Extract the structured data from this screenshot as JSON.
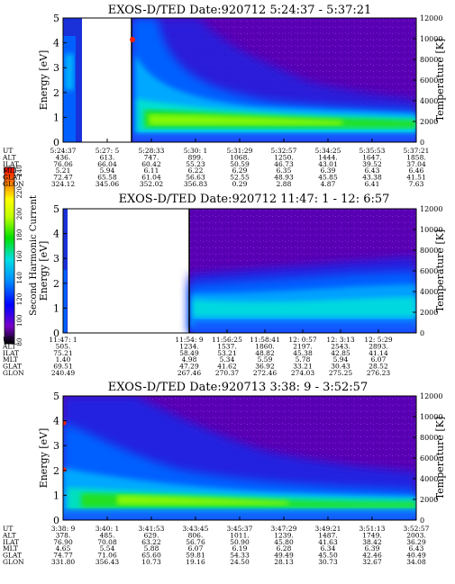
{
  "colors": {
    "background": "#5a00b4",
    "colorbar": [
      "#000000",
      "#7800c8",
      "#0000ff",
      "#0090ff",
      "#00e0e0",
      "#00e000",
      "#c0ff00",
      "#ffff00",
      "#ff8000",
      "#ff0000"
    ]
  },
  "colorbar": {
    "label": "Second Harmonic Current",
    "ticks": [
      "80",
      "100",
      "120",
      "140",
      "160",
      "180",
      "200",
      "220",
      "240"
    ]
  },
  "chart_data": [
    {
      "type": "heatmap",
      "title": "EXOS-D/TED   Date:920712  5:24:37 - 5:37:21",
      "ylabel": "Energy [eV]",
      "y2label": "Temperature [K]",
      "ylim": [
        0,
        5
      ],
      "y2lim": [
        0,
        12000
      ],
      "yticks": [
        "0",
        "1",
        "2",
        "3",
        "4",
        "5"
      ],
      "y2ticks": [
        "0",
        "2000",
        "4000",
        "6000",
        "8000",
        "10000",
        "12000"
      ],
      "row_labels": [
        "UT",
        "ALT",
        "ILAT",
        "MLT",
        "GLAT",
        "GLON"
      ],
      "columns": [
        [
          "5:24:37",
          "436.",
          "76.06",
          "5.21",
          "72.47",
          "324.12"
        ],
        [
          "5:27: 5",
          "613.",
          "66.04",
          "5.94",
          "65.58",
          "345.06"
        ],
        [
          "5:28:33",
          "747.",
          "60.42",
          "6.11",
          "61.04",
          "352.02"
        ],
        [
          "5:30: 1",
          "899.",
          "55.23",
          "6.22",
          "56.63",
          "356.83"
        ],
        [
          "5:31:29",
          "1068.",
          "50.59",
          "6.29",
          "52.55",
          "0.29"
        ],
        [
          "5:32:57",
          "1250.",
          "46.73",
          "6.35",
          "48.93",
          "2.88"
        ],
        [
          "5:34:25",
          "1444.",
          "43.01",
          "6.39",
          "45.85",
          "4.87"
        ],
        [
          "5:35:53",
          "1647.",
          "39.52",
          "6.43",
          "43.38",
          "6.41"
        ],
        [
          "5:37:21",
          "1858.",
          "37.04",
          "6.46",
          "41.51",
          "7.63"
        ]
      ]
    },
    {
      "type": "heatmap",
      "title": "EXOS-D/TED   Date:920712  11:47: 1 - 12: 6:57",
      "ylabel": "Energy [eV]",
      "y2label": "Temperature [K]",
      "ylim": [
        0,
        5
      ],
      "y2lim": [
        0,
        12000
      ],
      "yticks": [
        "0",
        "1",
        "2",
        "3",
        "4",
        "5"
      ],
      "y2ticks": [
        "0",
        "2000",
        "4000",
        "6000",
        "8000",
        "10000",
        "12000"
      ],
      "row_labels": [
        "UT",
        "ALT",
        "ILAT",
        "MLT",
        "GLAT",
        "GLON"
      ],
      "columns": [
        [
          "11:47: 1",
          "505.",
          "75.21",
          "1.40",
          "69.51",
          "240.49"
        ],
        [
          "11:54: 9",
          "1234.",
          "58.49",
          "4.98",
          "47.29",
          "267.46"
        ],
        [
          "11:56:25",
          "1537.",
          "53.21",
          "5.34",
          "41.62",
          "270.37"
        ],
        [
          "11:58:41",
          "1860.",
          "48.82",
          "5.59",
          "36.92",
          "272.46"
        ],
        [
          "12: 0:57",
          "2197.",
          "45.38",
          "5.78",
          "33.21",
          "274.03"
        ],
        [
          "12: 3:13",
          "2543.",
          "42.85",
          "5.94",
          "30.43",
          "275.25"
        ],
        [
          "12: 5:29",
          "2893.",
          "41.14",
          "6.07",
          "28.52",
          "276.23"
        ]
      ]
    },
    {
      "type": "heatmap",
      "title": "EXOS-D/TED   Date:920713  3:38: 9 - 3:52:57",
      "ylabel": "Energy [eV]",
      "y2label": "Temperature [K]",
      "ylim": [
        0,
        5
      ],
      "y2lim": [
        0,
        12000
      ],
      "yticks": [
        "0",
        "1",
        "2",
        "3",
        "4",
        "5"
      ],
      "y2ticks": [
        "0",
        "2000",
        "4000",
        "6000",
        "8000",
        "10000",
        "12000"
      ],
      "row_labels": [
        "UT",
        "ALT",
        "ILAT",
        "MLT",
        "GLAT",
        "GLON"
      ],
      "columns": [
        [
          "3:38: 9",
          "378.",
          "76.90",
          "4.65",
          "74.77",
          "331.80"
        ],
        [
          "3:40: 1",
          "485.",
          "70.08",
          "5.54",
          "71.06",
          "356.43"
        ],
        [
          "3:41:53",
          "629.",
          "63.22",
          "5.88",
          "65.60",
          "10.73"
        ],
        [
          "3:43:45",
          "806.",
          "56.76",
          "6.07",
          "59.81",
          "19.16"
        ],
        [
          "3:45:37",
          "1011.",
          "50.90",
          "6.19",
          "54.33",
          "24.50"
        ],
        [
          "3:47:29",
          "1239.",
          "45.80",
          "6.28",
          "49.49",
          "28.13"
        ],
        [
          "3:49:21",
          "1487.",
          "41.63",
          "6.34",
          "45.50",
          "30.73"
        ],
        [
          "3:51:13",
          "1749.",
          "38.42",
          "6.39",
          "42.46",
          "32.67"
        ],
        [
          "3:52:57",
          "2003.",
          "36.29",
          "6.43",
          "40.49",
          "34.08"
        ]
      ]
    }
  ]
}
